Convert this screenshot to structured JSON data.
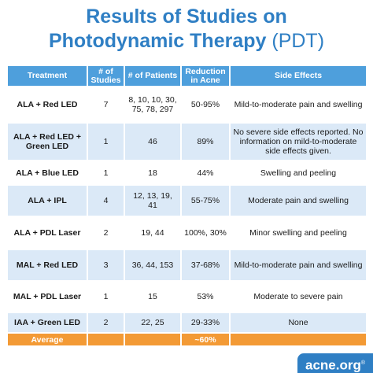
{
  "title": {
    "line1": "Results of Studies on",
    "line2_bold": "Photodynamic Therapy",
    "line2_light": "(PDT)"
  },
  "table": {
    "headers": {
      "treatment": "Treatment",
      "studies": "# of Studies",
      "patients": "# of Patients",
      "reduction": "Reduction in Acne",
      "side_effects": "Side Effects"
    },
    "rows": [
      {
        "treatment": "ALA + Red LED",
        "studies": "7",
        "patients": "8, 10, 10, 30, 75, 78, 297",
        "reduction": "50-95%",
        "side_effects": "Mild-to-moderate pain and swelling"
      },
      {
        "treatment": "ALA + Red LED + Green LED",
        "studies": "1",
        "patients": "46",
        "reduction": "89%",
        "side_effects": "No severe side effects reported. No information on mild-to-moderate side effects given."
      },
      {
        "treatment": "ALA + Blue LED",
        "studies": "1",
        "patients": "18",
        "reduction": "44%",
        "side_effects": "Swelling and peeling"
      },
      {
        "treatment": "ALA + IPL",
        "studies": "4",
        "patients": "12, 13, 19, 41",
        "reduction": "55-75%",
        "side_effects": "Moderate pain and swelling"
      },
      {
        "treatment": "ALA + PDL Laser",
        "studies": "2",
        "patients": "19, 44",
        "reduction": "100%, 30%",
        "side_effects": "Minor swelling and peeling"
      },
      {
        "treatment": "MAL + Red LED",
        "studies": "3",
        "patients": "36, 44, 153",
        "reduction": "37-68%",
        "side_effects": "Mild-to-moderate pain and swelling"
      },
      {
        "treatment": "MAL + PDL Laser",
        "studies": "1",
        "patients": "15",
        "reduction": "53%",
        "side_effects": "Moderate to severe pain"
      },
      {
        "treatment": "IAA + Green LED",
        "studies": "2",
        "patients": "22, 25",
        "reduction": "29-33%",
        "side_effects": "None"
      }
    ],
    "average": {
      "label": "Average",
      "value": "~60%"
    }
  },
  "logo": {
    "text": "acne.org",
    "mark": "®"
  },
  "colors": {
    "title": "#2f7fc4",
    "header": "#4e9fdc",
    "stripe": "#dbe9f7",
    "average": "#f39a35",
    "logo_bg": "#2f7fc4"
  }
}
